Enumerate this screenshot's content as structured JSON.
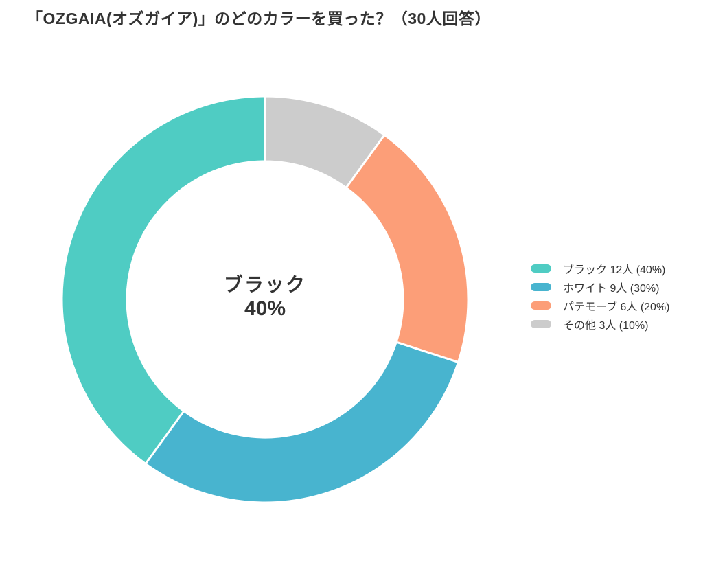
{
  "title": "「OZGAIA(オズガイア)」のどのカラーを買った？（30人回答）",
  "chart_data": {
    "type": "pie",
    "subtype": "donut",
    "title": "「OZGAIA(オズガイア)」のどのカラーを買った？（30人回答）",
    "respondents_total": 30,
    "direction": "counterclockwise",
    "start_angle": "top",
    "legend_position": "right",
    "center_label": {
      "line1": "ブラック",
      "line2": "40%"
    },
    "segments": [
      {
        "label": "ブラック",
        "count": 12,
        "count_label": "12人",
        "percent": 40,
        "color": "#4FCCC3",
        "legend_text": "ブラック 12人 (40%)"
      },
      {
        "label": "ホワイト",
        "count": 9,
        "count_label": "9人",
        "percent": 30,
        "color": "#48B4CF",
        "legend_text": "ホワイト 9人 (30%)"
      },
      {
        "label": "パテモーブ",
        "count": 6,
        "count_label": "6人",
        "percent": 20,
        "color": "#FC9E78",
        "legend_text": "パテモーブ 6人 (20%)"
      },
      {
        "label": "その他",
        "count": 3,
        "count_label": "3人",
        "percent": 10,
        "color": "#CCCCCC",
        "legend_text": "その他 3人 (10%)"
      }
    ],
    "colors": {
      "text": "#333333",
      "segment_border": "#FFFFFF",
      "background": "#FFFFFF"
    }
  }
}
